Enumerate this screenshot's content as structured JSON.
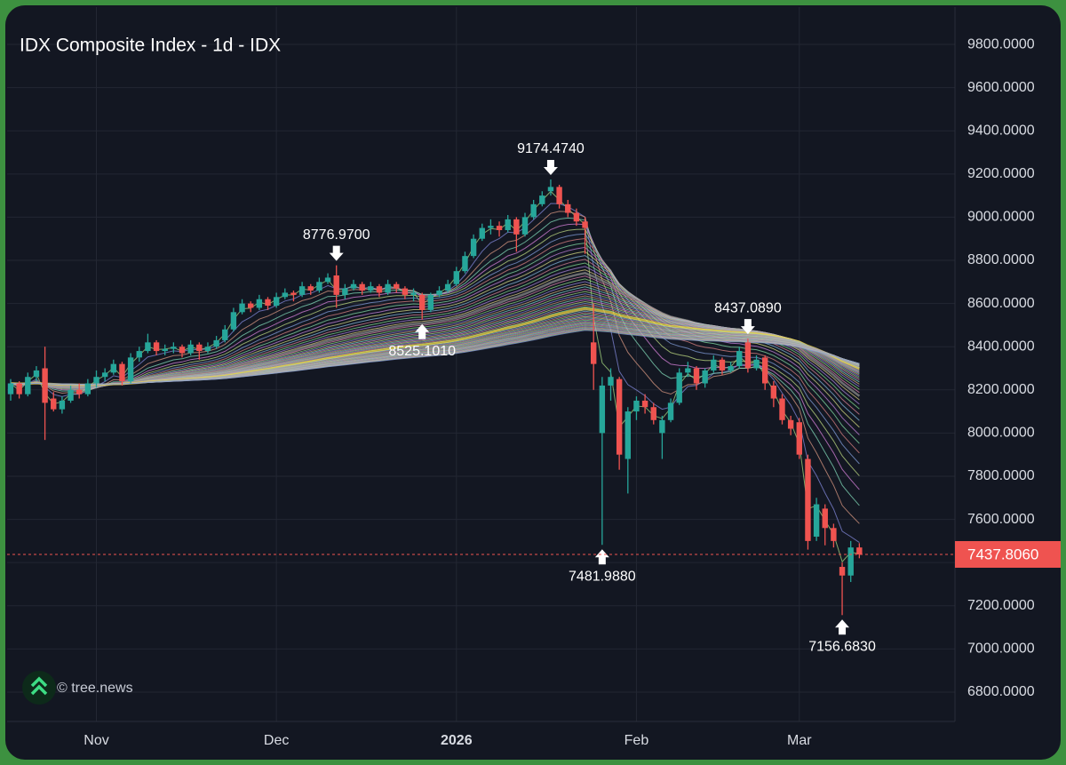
{
  "chart_data": {
    "type": "candlestick",
    "title": "IDX Composite Index - 1d - IDX",
    "watermark": "© tree.news",
    "categories": [
      null,
      null,
      null,
      null,
      null,
      null,
      null,
      null,
      null,
      null,
      "Nov",
      null,
      null,
      null,
      null,
      null,
      null,
      null,
      null,
      null,
      null,
      null,
      null,
      null,
      null,
      null,
      null,
      null,
      null,
      null,
      null,
      "Dec",
      null,
      null,
      null,
      null,
      null,
      null,
      null,
      null,
      null,
      null,
      null,
      null,
      null,
      null,
      null,
      null,
      null,
      null,
      null,
      null,
      "2026",
      null,
      null,
      null,
      null,
      null,
      null,
      null,
      null,
      null,
      null,
      null,
      null,
      null,
      null,
      null,
      null,
      null,
      null,
      null,
      null,
      "Feb",
      null,
      null,
      null,
      null,
      null,
      null,
      null,
      null,
      null,
      null,
      null,
      null,
      null,
      null,
      null,
      null,
      null,
      null,
      "Mar",
      null,
      null,
      null,
      null,
      null,
      null,
      null
    ],
    "open": [
      8180,
      8230,
      8180,
      8260,
      8300,
      8160,
      8110,
      8150,
      8200,
      8180,
      8230,
      8260,
      8280,
      8320,
      8240,
      8350,
      8380,
      8420,
      8380,
      8390,
      8400,
      8370,
      8410,
      8380,
      8400,
      8430,
      8480,
      8560,
      8600,
      8580,
      8620,
      8590,
      8630,
      8650,
      8640,
      8680,
      8660,
      8700,
      8730,
      8640,
      8670,
      8690,
      8660,
      8680,
      8650,
      8690,
      8670,
      8640,
      8640,
      8570,
      8640,
      8660,
      8690,
      8750,
      8820,
      8900,
      8950,
      8960,
      8940,
      8990,
      8920,
      9000,
      9060,
      9120,
      9140,
      9060,
      9020,
      8980,
      8420,
      8000,
      8220,
      8250,
      7880,
      8100,
      8150,
      8120,
      8000,
      8060,
      8140,
      8280,
      8300,
      8230,
      8290,
      8340,
      8290,
      8310,
      8420,
      8300,
      8350,
      8220,
      8160,
      8060,
      8050,
      7880,
      7520,
      7650,
      7560,
      7380,
      7340,
      7470
    ],
    "high": [
      8250,
      8240,
      8280,
      8310,
      8400,
      8190,
      8170,
      8220,
      8230,
      8250,
      8290,
      8300,
      8340,
      8330,
      8370,
      8400,
      8460,
      8430,
      8410,
      8420,
      8410,
      8430,
      8420,
      8420,
      8450,
      8500,
      8580,
      8620,
      8610,
      8640,
      8630,
      8650,
      8670,
      8660,
      8700,
      8690,
      8720,
      8740,
      8776.97,
      8690,
      8710,
      8700,
      8700,
      8690,
      8710,
      8700,
      8680,
      8670,
      8650,
      8650,
      8680,
      8710,
      8770,
      8840,
      8920,
      8970,
      8990,
      8980,
      9010,
      9000,
      9020,
      9080,
      9120,
      9174.474,
      9150,
      9080,
      9040,
      9000,
      8600,
      8260,
      8300,
      8260,
      8120,
      8170,
      8180,
      8140,
      8080,
      8160,
      8300,
      8330,
      8310,
      8300,
      8360,
      8350,
      8330,
      8400,
      8437.089,
      8360,
      8360,
      8240,
      8180,
      8080,
      8070,
      7900,
      7700,
      7670,
      7580,
      7400,
      7500,
      7490
    ],
    "low": [
      8150,
      8160,
      8170,
      8240,
      7968,
      8100,
      8090,
      8140,
      8160,
      8170,
      8210,
      8240,
      8270,
      8220,
      8230,
      8330,
      8370,
      8360,
      8360,
      8370,
      8350,
      8360,
      8340,
      8370,
      8390,
      8420,
      8470,
      8550,
      8560,
      8570,
      8570,
      8580,
      8620,
      8610,
      8630,
      8640,
      8650,
      8690,
      8580,
      8620,
      8660,
      8640,
      8650,
      8630,
      8640,
      8650,
      8620,
      8610,
      8525.101,
      8560,
      8630,
      8650,
      8680,
      8740,
      8810,
      8890,
      8920,
      8910,
      8930,
      8840,
      8910,
      8990,
      9050,
      9100,
      9040,
      9000,
      8960,
      8830,
      8200,
      7481.988,
      8150,
      7830,
      7720,
      8060,
      8090,
      8040,
      7880,
      8050,
      8130,
      8260,
      8200,
      8210,
      8280,
      8270,
      8280,
      8300,
      8280,
      8290,
      8200,
      8120,
      8040,
      7990,
      7880,
      7460,
      7500,
      7480,
      7470,
      7156.683,
      7310,
      7420
    ],
    "close": [
      8230,
      8180,
      8260,
      8290,
      8140,
      8110,
      8150,
      8200,
      8180,
      8230,
      8260,
      8280,
      8320,
      8240,
      8350,
      8380,
      8420,
      8380,
      8390,
      8400,
      8370,
      8410,
      8380,
      8400,
      8430,
      8480,
      8560,
      8600,
      8580,
      8620,
      8590,
      8630,
      8650,
      8640,
      8680,
      8660,
      8700,
      8720,
      8640,
      8670,
      8690,
      8660,
      8680,
      8650,
      8690,
      8670,
      8640,
      8650,
      8570,
      8640,
      8660,
      8690,
      8750,
      8820,
      8900,
      8950,
      8960,
      8940,
      8990,
      8920,
      9000,
      9060,
      9100,
      9140,
      9060,
      9020,
      8980,
      8950,
      8320,
      8220,
      8260,
      7900,
      8100,
      8150,
      8120,
      8060,
      8060,
      8140,
      8280,
      8300,
      8230,
      8290,
      8340,
      8290,
      8310,
      8380,
      8300,
      8340,
      8230,
      8160,
      8060,
      8020,
      7900,
      7500,
      7670,
      7560,
      7500,
      7340,
      7470,
      7437.806
    ],
    "up_color": "#26a69a",
    "down_color": "#ef5350",
    "annotations": [
      {
        "label": "8776.9700",
        "value": 8776.97
      },
      {
        "label": "8525.1010",
        "value": 8525.101
      },
      {
        "label": "9174.4740",
        "value": 9174.474
      },
      {
        "label": "7481.9880",
        "value": 7481.988
      },
      {
        "label": "8437.0890",
        "value": 8437.089
      },
      {
        "label": "7156.6830",
        "value": 7156.683
      }
    ],
    "last_price": {
      "value": 7437.806,
      "label": "7437.8060"
    },
    "ylim": [
      6664,
      9973
    ],
    "yticks": [
      {
        "value": 6800,
        "label": "6800.0000"
      },
      {
        "value": 7000,
        "label": "7000.0000"
      },
      {
        "value": 7200,
        "label": "7200.0000"
      },
      {
        "value": 7400,
        "label": "7400.0000"
      },
      {
        "value": 7600,
        "label": "7600.0000"
      },
      {
        "value": 7800,
        "label": "7800.0000"
      },
      {
        "value": 8000,
        "label": "8000.0000"
      },
      {
        "value": 8200,
        "label": "8200.0000"
      },
      {
        "value": 8400,
        "label": "8400.0000"
      },
      {
        "value": 8600,
        "label": "8600.0000"
      },
      {
        "value": 8800,
        "label": "8800.0000"
      },
      {
        "value": 9000,
        "label": "9000.0000"
      },
      {
        "value": 9200,
        "label": "9200.0000"
      },
      {
        "value": 9400,
        "label": "9400.0000"
      },
      {
        "value": 9600,
        "label": "9600.0000"
      },
      {
        "value": 9800,
        "label": "9800.0000"
      }
    ],
    "grid": true
  }
}
